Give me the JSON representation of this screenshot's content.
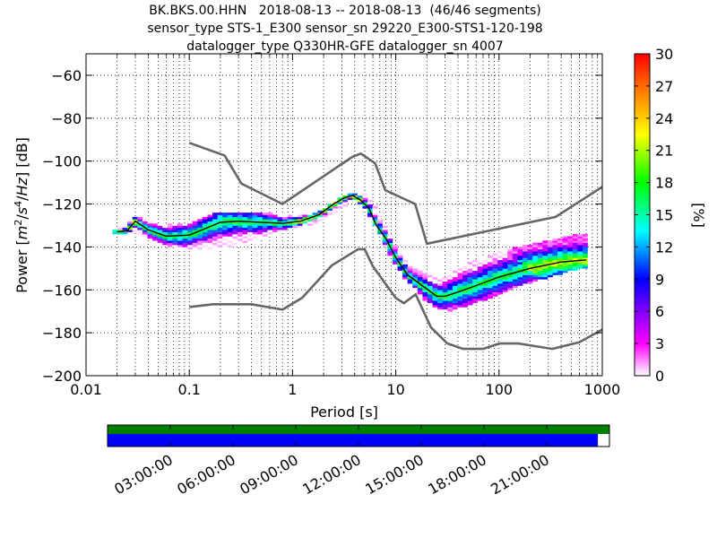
{
  "title_lines": [
    "BK.BKS.00.HHN   2018-08-13 -- 2018-08-13  (46/46 segments)",
    "sensor_type STS-1_E300 sensor_sn 29220_E300-STS1-120-198",
    "datalogger_type Q330HR-GFE datalogger_sn 4007"
  ],
  "chart_data": {
    "type": "heatmap",
    "xlabel": "Period [s]",
    "ylabel_parts": [
      "Power [",
      "m",
      "2",
      "/",
      "s",
      "4",
      "/",
      "Hz",
      "] [dB]"
    ],
    "x_scale": "log",
    "xlim": [
      0.01,
      1000
    ],
    "ylim": [
      -200,
      -50
    ],
    "x_ticks": [
      {
        "value": 0.01,
        "label": "0.01"
      },
      {
        "value": 0.1,
        "label": "0.1"
      },
      {
        "value": 1,
        "label": "1"
      },
      {
        "value": 10,
        "label": "10"
      },
      {
        "value": 100,
        "label": "100"
      },
      {
        "value": 1000,
        "label": "1000"
      }
    ],
    "y_ticks": [
      {
        "value": -60,
        "label": "−60"
      },
      {
        "value": -80,
        "label": "−80"
      },
      {
        "value": -100,
        "label": "−100"
      },
      {
        "value": -120,
        "label": "−120"
      },
      {
        "value": -140,
        "label": "−140"
      },
      {
        "value": -160,
        "label": "−160"
      },
      {
        "value": -180,
        "label": "−180"
      },
      {
        "value": -200,
        "label": "−200"
      }
    ],
    "grid": "dotted",
    "noise_models": {
      "high": {
        "x": [
          0.1,
          0.22,
          0.32,
          0.8,
          3.8,
          4.6,
          6.3,
          7.9,
          15.4,
          20,
          354,
          1000
        ],
        "y": [
          -91.5,
          -97.4,
          -110.5,
          -120,
          -98,
          -96.5,
          -101,
          -113.5,
          -120,
          -138.5,
          -126,
          -112
        ]
      },
      "low": {
        "x": [
          0.1,
          0.17,
          0.4,
          0.8,
          1.24,
          2.4,
          4.3,
          5,
          6,
          10,
          12,
          15.6,
          21.9,
          31.6,
          45,
          70,
          101,
          154,
          328,
          600,
          1000
        ],
        "y": [
          -168,
          -166.7,
          -166.7,
          -169.2,
          -163.7,
          -148.6,
          -141.1,
          -141.1,
          -149,
          -163.8,
          -166.2,
          -162.1,
          -177.5,
          -185,
          -187.5,
          -187.5,
          -185,
          -185,
          -187.5,
          -184.4,
          -178.5
        ]
      }
    },
    "psd_mean": {
      "x": [
        0.02,
        0.025,
        0.03,
        0.04,
        0.06,
        0.1,
        0.15,
        0.2,
        0.3,
        0.5,
        0.8,
        1.2,
        1.8,
        2.5,
        3.2,
        3.8,
        4.5,
        5.5,
        6.5,
        8,
        10,
        13,
        18,
        25,
        30,
        40,
        60,
        100,
        200,
        400,
        700
      ],
      "y": [
        -133,
        -132.5,
        -128,
        -132,
        -135,
        -134.5,
        -131,
        -128.5,
        -128,
        -128.5,
        -129,
        -128,
        -125,
        -120,
        -117,
        -116,
        -118,
        -122,
        -130,
        -136,
        -145,
        -153,
        -158,
        -163,
        -163,
        -161,
        -158,
        -154,
        -150,
        -147,
        -146
      ]
    },
    "psd_spread": {
      "x": [
        0.02,
        0.03,
        0.05,
        0.1,
        0.2,
        0.4,
        1,
        1.8,
        3,
        3.8,
        5,
        7,
        10,
        14,
        20,
        30,
        50,
        100,
        200,
        400,
        700
      ],
      "upper": [
        -132,
        -126,
        -129,
        -129,
        -124,
        -124,
        -126,
        -124,
        -117,
        -115,
        -115,
        -124,
        -140,
        -150,
        -152,
        -155,
        -148,
        -143,
        -139,
        -136,
        -134
      ],
      "lower": [
        -134,
        -132,
        -138,
        -141,
        -140,
        -137,
        -131,
        -128,
        -121,
        -118,
        -121,
        -133,
        -149,
        -158,
        -165,
        -170,
        -167,
        -162,
        -156,
        -152,
        -149
      ]
    },
    "colorbar": {
      "label": "[%]",
      "min": 0,
      "max": 30,
      "ticks": [
        "0",
        "3",
        "6",
        "9",
        "12",
        "15",
        "18",
        "21",
        "24",
        "27",
        "30"
      ]
    },
    "timeline": {
      "tick_labels": [
        "03:00:00",
        "06:00:00",
        "09:00:00",
        "12:00:00",
        "15:00:00",
        "18:00:00",
        "21:00:00"
      ],
      "coverage_fraction": 0.977,
      "colors": {
        "top": "#008000",
        "bottom": "#0000ff"
      }
    }
  },
  "colors": {
    "noise_model": "#666666",
    "mean": "#000000",
    "grid": "#000000"
  }
}
